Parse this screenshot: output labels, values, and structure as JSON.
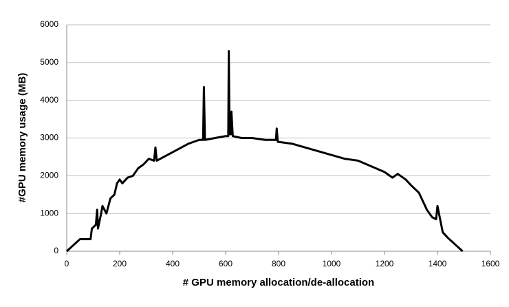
{
  "chart_data": {
    "type": "line",
    "xlabel": "# GPU memory allocation/de-allocation",
    "ylabel": "#GPU memory usage (MB)",
    "x": [
      0,
      50,
      90,
      95,
      110,
      115,
      118,
      130,
      135,
      150,
      165,
      180,
      190,
      200,
      210,
      230,
      250,
      270,
      290,
      310,
      330,
      335,
      340,
      380,
      420,
      460,
      500,
      515,
      518,
      522,
      560,
      600,
      610,
      612,
      615,
      620,
      622,
      627,
      660,
      700,
      750,
      790,
      793,
      797,
      850,
      900,
      950,
      1000,
      1050,
      1100,
      1150,
      1200,
      1230,
      1250,
      1280,
      1300,
      1330,
      1360,
      1380,
      1395,
      1400,
      1410,
      1420,
      1440,
      1495
    ],
    "series": [
      {
        "name": "GPU memory usage",
        "color": "#000000",
        "values": [
          0,
          320,
          320,
          600,
          700,
          1100,
          600,
          1000,
          1200,
          1000,
          1400,
          1500,
          1800,
          1900,
          1800,
          1950,
          2000,
          2200,
          2300,
          2450,
          2400,
          2750,
          2400,
          2550,
          2700,
          2850,
          2950,
          2950,
          4350,
          2950,
          3000,
          3050,
          3050,
          5300,
          3100,
          3100,
          3700,
          3050,
          3000,
          3000,
          2950,
          2950,
          3250,
          2900,
          2850,
          2750,
          2650,
          2550,
          2450,
          2400,
          2250,
          2100,
          1950,
          2050,
          1900,
          1750,
          1550,
          1100,
          900,
          850,
          1200,
          850,
          500,
          350,
          0
        ]
      }
    ],
    "xlim": [
      0,
      1600
    ],
    "xticks": [
      0,
      200,
      400,
      600,
      800,
      1000,
      1200,
      1400,
      1600
    ],
    "ylim": [
      0,
      6000
    ],
    "yticks": [
      0,
      1000,
      2000,
      3000,
      4000,
      5000,
      6000
    ],
    "grid": true
  }
}
